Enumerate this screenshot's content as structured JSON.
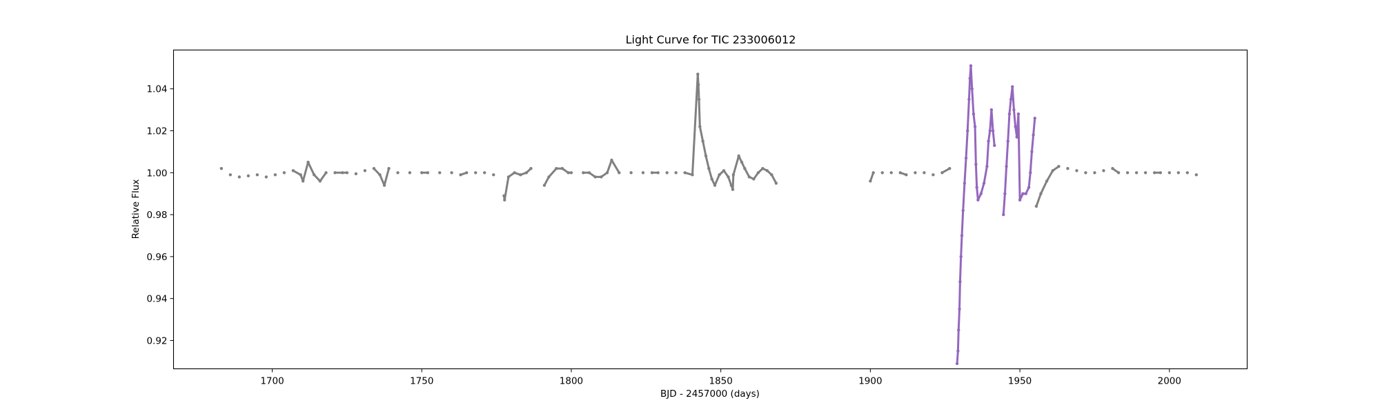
{
  "chart_data": {
    "type": "scatter",
    "title": "Light Curve for TIC 233006012",
    "xlabel": "BJD - 2457000 (days)",
    "ylabel": "Relative Flux",
    "xlim": [
      1667,
      2026
    ],
    "ylim": [
      0.9065,
      1.0585
    ],
    "xticks": [
      1700,
      1750,
      1800,
      1850,
      1900,
      1950,
      2000
    ],
    "yticks": [
      0.92,
      0.94,
      0.96,
      0.98,
      1.0,
      1.02,
      1.04
    ],
    "ytick_labels": [
      "0.92",
      "0.94",
      "0.96",
      "0.98",
      "1.00",
      "1.02",
      "1.04"
    ],
    "grid": false,
    "legend": "none",
    "colors": {
      "series_gray": "#808080",
      "series_purple": "#9467bd"
    },
    "series": [
      {
        "color": "#808080",
        "points": [
          [
            1683.0,
            1.002
          ],
          [
            1686.0,
            0.999
          ],
          [
            1689.0,
            0.998
          ],
          [
            1692.0,
            0.9985
          ],
          [
            1695.0,
            0.999
          ],
          [
            1698.0,
            0.998
          ],
          [
            1701.0,
            0.999
          ],
          [
            1704.0,
            1.0
          ],
          [
            1707.0,
            1.001
          ],
          [
            1709.5,
            0.999
          ],
          [
            1710.3,
            0.996
          ],
          [
            1712.0,
            1.005
          ],
          [
            1714.0,
            0.999
          ],
          [
            1716.0,
            0.996
          ],
          [
            1718.0,
            1.0
          ],
          [
            1721.0,
            1.0
          ],
          [
            1723.5,
            1.0
          ],
          [
            1725.0,
            1.0
          ],
          [
            1728.0,
            0.9995
          ],
          [
            1731.0,
            1.001
          ],
          [
            1734.0,
            1.002
          ],
          [
            1736.0,
            0.999
          ],
          [
            1737.5,
            0.994
          ],
          [
            1739.0,
            1.002
          ],
          [
            1742.0,
            1.0
          ],
          [
            1746.0,
            1.0
          ],
          [
            1750.0,
            1.0
          ],
          [
            1752.0,
            1.0
          ],
          [
            1756.0,
            1.0
          ],
          [
            1760.0,
            1.0
          ],
          [
            1763.0,
            0.999
          ],
          [
            1765.0,
            1.0
          ],
          [
            1768.0,
            1.0
          ],
          [
            1771.0,
            1.0
          ],
          [
            1774.0,
            0.999
          ],
          [
            1777.5,
            0.989
          ],
          [
            1777.7,
            0.987
          ],
          [
            1779.0,
            0.998
          ],
          [
            1781.0,
            1.0
          ],
          [
            1783.0,
            0.999
          ],
          [
            1785.0,
            1.0
          ],
          [
            1786.5,
            1.002
          ],
          [
            1791.0,
            0.994
          ],
          [
            1792.5,
            0.998
          ],
          [
            1795.0,
            1.002
          ],
          [
            1797.0,
            1.002
          ],
          [
            1799.0,
            1.0
          ],
          [
            1800.0,
            1.0
          ],
          [
            1804.0,
            1.0
          ],
          [
            1806.0,
            1.0
          ],
          [
            1808.0,
            0.998
          ],
          [
            1810.0,
            0.998
          ],
          [
            1812.0,
            1.0
          ],
          [
            1813.5,
            1.006
          ],
          [
            1816.0,
            1.0
          ],
          [
            1820.0,
            1.0
          ],
          [
            1824.0,
            1.0
          ],
          [
            1827.0,
            1.0
          ],
          [
            1829.0,
            1.0
          ],
          [
            1832.0,
            1.0
          ],
          [
            1835.0,
            1.0
          ],
          [
            1838.0,
            1.0
          ],
          [
            1840.5,
            0.999
          ],
          [
            1842.3,
            1.047
          ],
          [
            1842.5,
            1.042
          ],
          [
            1842.7,
            1.035
          ],
          [
            1843.0,
            1.022
          ],
          [
            1844.0,
            1.015
          ],
          [
            1845.0,
            1.008
          ],
          [
            1846.0,
            1.002
          ],
          [
            1847.0,
            0.997
          ],
          [
            1848.0,
            0.994
          ],
          [
            1849.5,
            0.999
          ],
          [
            1851.0,
            1.001
          ],
          [
            1852.5,
            0.998
          ],
          [
            1853.5,
            0.994
          ],
          [
            1854.0,
            0.992
          ],
          [
            1854.2,
            0.999
          ],
          [
            1856.0,
            1.008
          ],
          [
            1857.0,
            1.005
          ],
          [
            1858.0,
            1.002
          ],
          [
            1859.5,
            0.998
          ],
          [
            1861.0,
            0.997
          ],
          [
            1862.5,
            1.0
          ],
          [
            1864.0,
            1.002
          ],
          [
            1865.5,
            1.001
          ],
          [
            1867.0,
            0.999
          ],
          [
            1868.5,
            0.995
          ],
          [
            1900.0,
            0.996
          ],
          [
            1901.0,
            1.0
          ],
          [
            1904.0,
            1.0
          ],
          [
            1907.0,
            1.0
          ],
          [
            1910.0,
            1.0
          ],
          [
            1912.0,
            0.999
          ],
          [
            1915.0,
            1.0
          ],
          [
            1918.0,
            1.0
          ],
          [
            1921.0,
            0.999
          ],
          [
            1924.0,
            1.0
          ],
          [
            1926.5,
            1.002
          ],
          [
            1955.5,
            0.984
          ],
          [
            1957.0,
            0.99
          ],
          [
            1959.0,
            0.996
          ],
          [
            1961.0,
            1.001
          ],
          [
            1963.0,
            1.003
          ],
          [
            1966.0,
            1.002
          ],
          [
            1969.0,
            1.001
          ],
          [
            1972.0,
            1.0
          ],
          [
            1975.0,
            1.0
          ],
          [
            1978.0,
            1.001
          ],
          [
            1981.0,
            1.002
          ],
          [
            1983.0,
            1.0
          ],
          [
            1986.0,
            1.0
          ],
          [
            1989.0,
            1.0
          ],
          [
            1992.0,
            1.0
          ],
          [
            1995.0,
            1.0
          ],
          [
            1997.0,
            1.0
          ],
          [
            2000.0,
            1.0
          ],
          [
            2003.0,
            1.0
          ],
          [
            2006.0,
            1.0
          ],
          [
            2009.0,
            0.999
          ]
        ]
      },
      {
        "color": "#9467bd",
        "points": [
          [
            1929.0,
            0.909
          ],
          [
            1929.3,
            0.915
          ],
          [
            1929.5,
            0.925
          ],
          [
            1929.8,
            0.935
          ],
          [
            1930.0,
            0.948
          ],
          [
            1930.3,
            0.96
          ],
          [
            1930.6,
            0.97
          ],
          [
            1931.0,
            0.982
          ],
          [
            1931.5,
            0.995
          ],
          [
            1932.0,
            1.007
          ],
          [
            1932.5,
            1.02
          ],
          [
            1933.0,
            1.035
          ],
          [
            1933.3,
            1.045
          ],
          [
            1933.6,
            1.051
          ],
          [
            1934.0,
            1.04
          ],
          [
            1934.5,
            1.028
          ],
          [
            1935.0,
            1.022
          ],
          [
            1935.3,
            1.004
          ],
          [
            1935.6,
            0.993
          ],
          [
            1936.0,
            0.987
          ],
          [
            1937.0,
            0.99
          ],
          [
            1938.0,
            0.995
          ],
          [
            1939.0,
            1.003
          ],
          [
            1939.5,
            1.015
          ],
          [
            1940.0,
            1.02
          ],
          [
            1940.5,
            1.03
          ],
          [
            1941.0,
            1.02
          ],
          [
            1941.5,
            1.013
          ],
          [
            1944.5,
            0.98
          ],
          [
            1945.0,
            0.99
          ],
          [
            1945.5,
            1.003
          ],
          [
            1946.0,
            1.015
          ],
          [
            1946.5,
            1.028
          ],
          [
            1947.0,
            1.035
          ],
          [
            1947.5,
            1.041
          ],
          [
            1948.0,
            1.03
          ],
          [
            1948.5,
            1.022
          ],
          [
            1949.0,
            1.017
          ],
          [
            1949.5,
            1.028
          ],
          [
            1950.0,
            0.987
          ],
          [
            1951.0,
            0.99
          ],
          [
            1952.0,
            0.99
          ],
          [
            1953.0,
            0.993
          ],
          [
            1953.5,
            1.0
          ],
          [
            1954.0,
            1.01
          ],
          [
            1954.5,
            1.018
          ],
          [
            1955.0,
            1.026
          ]
        ]
      }
    ]
  }
}
